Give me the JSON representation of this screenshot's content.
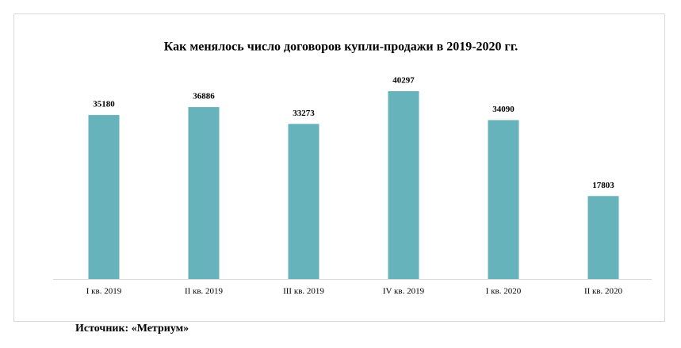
{
  "chart_data": {
    "type": "bar",
    "title": "Как менялось число договоров купли-продажи в 2019-2020 гг.",
    "categories": [
      "I кв. 2019",
      "II кв. 2019",
      "III кв. 2019",
      "IV кв. 2019",
      "I кв. 2020",
      "II кв. 2020"
    ],
    "values": [
      35180,
      36886,
      33273,
      40297,
      34090,
      17803
    ],
    "color": "#66b3bb",
    "source": "Источник: «Метриум»"
  }
}
